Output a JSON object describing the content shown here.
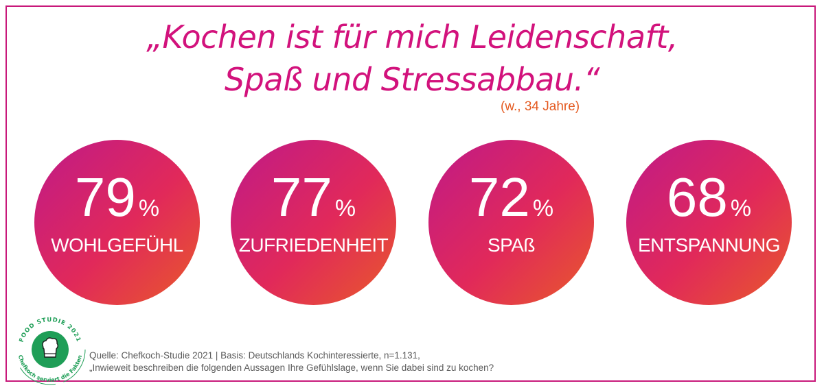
{
  "quote": {
    "line1": "„Kochen ist für mich Leidenschaft,",
    "line2": "Spaß und Stressabbau.“",
    "attribution": "(w., 34 Jahre)"
  },
  "chart_data": {
    "type": "bar",
    "categories": [
      "WOHLGEFÜHL",
      "ZUFRIEDENHEIT",
      "SPAß",
      "ENTSPANNUNG"
    ],
    "values": [
      79,
      77,
      72,
      68
    ],
    "value_labels": [
      "79",
      "77",
      "72",
      "68"
    ],
    "unit": "%"
  },
  "badge": {
    "top_text": "FOOD STUDIE 2021",
    "bottom_text": "Chefkoch serviert die Fakten",
    "icon": "chef-hat-icon"
  },
  "source": {
    "line1": "Quelle: Chefkoch-Studie 2021 | Basis: Deutschlands Kochinteressierte, n=1.131,",
    "line2": "„Inwieweit beschreiben die folgenden Aussagen Ihre Gefühlslage, wenn Sie dabei sind zu kochen?"
  },
  "colors": {
    "frame": "#c8187a",
    "quote": "#d2127c",
    "attribution": "#e4591f",
    "gradient_start": "#bf1a88",
    "gradient_end": "#e85a2a",
    "badge_green": "#1f9e57"
  }
}
